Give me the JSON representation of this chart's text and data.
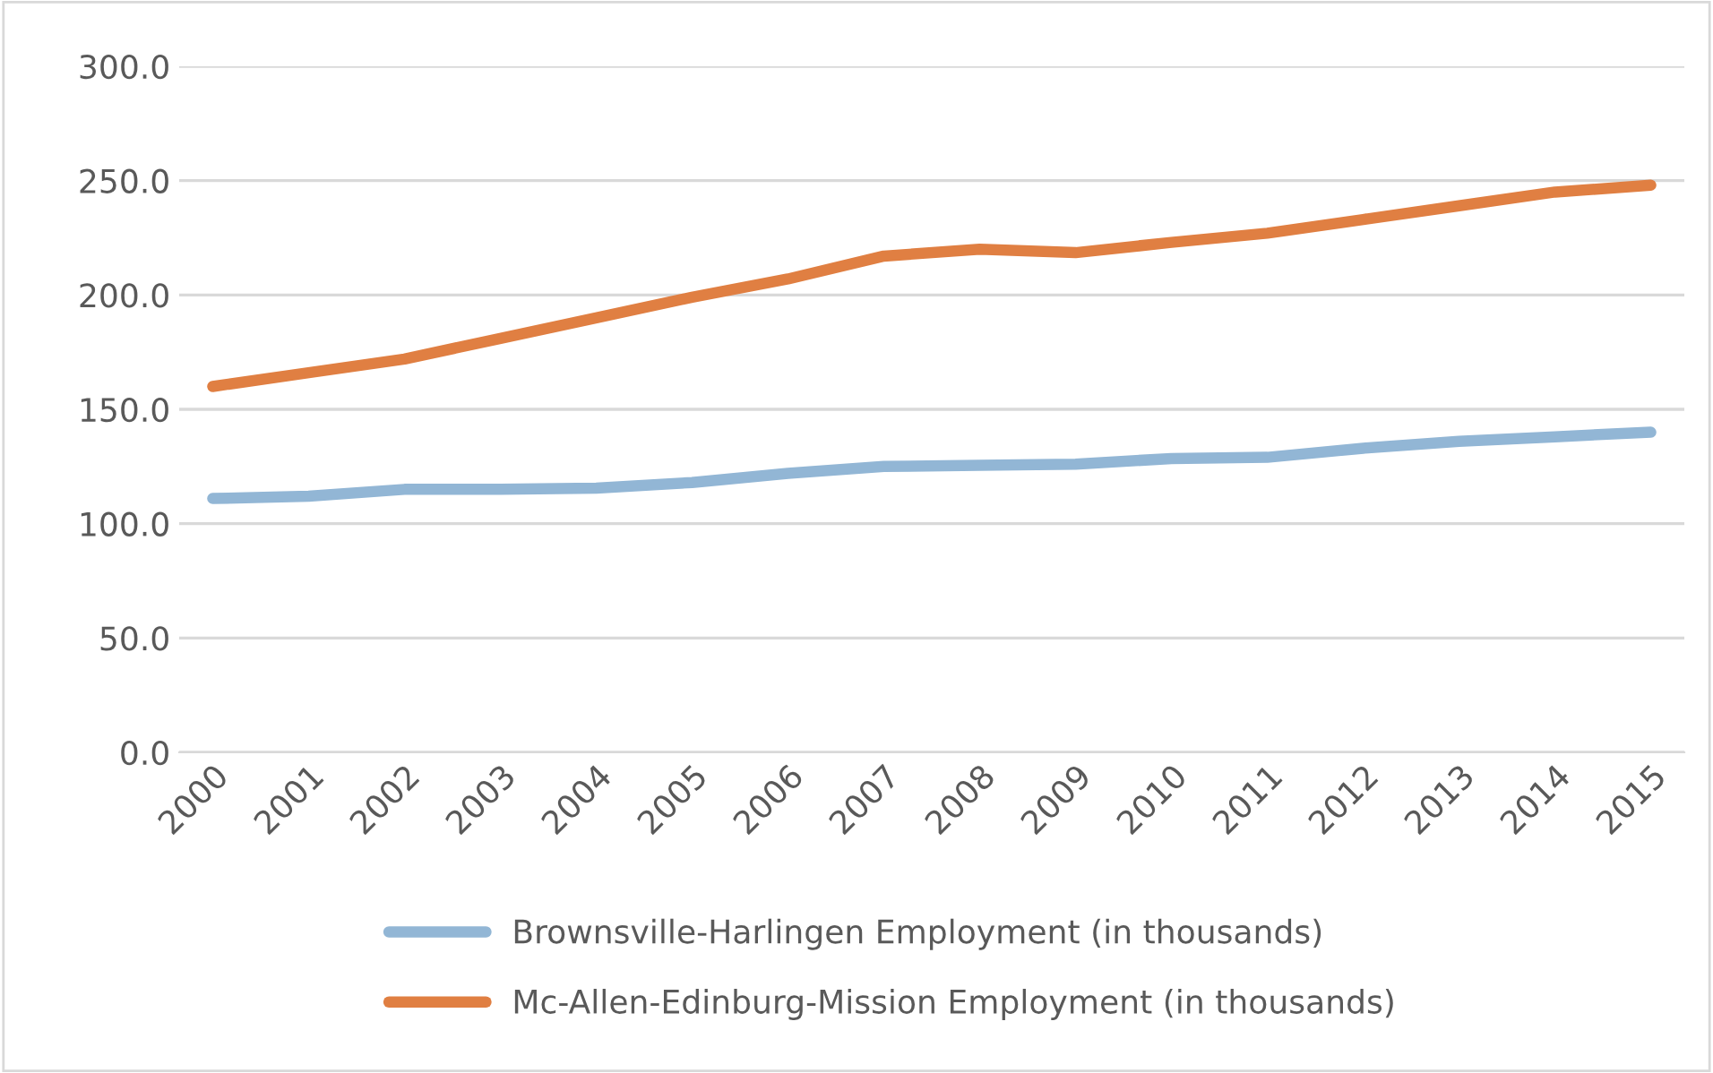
{
  "chart_data": {
    "type": "line",
    "categories": [
      "2000",
      "2001",
      "2002",
      "2003",
      "2004",
      "2005",
      "2006",
      "2007",
      "2008",
      "2009",
      "2010",
      "2011",
      "2012",
      "2013",
      "2014",
      "2015"
    ],
    "series": [
      {
        "name": "Brownsville-Harlingen Employment (in thousands)",
        "color": "#92b6d5",
        "values": [
          111,
          112,
          115,
          115,
          115.5,
          118,
          122,
          125,
          125.5,
          126,
          128.5,
          129,
          133,
          136,
          138,
          140
        ]
      },
      {
        "name": "Mc-Allen-Edinburg-Mission Employment (in thousands)",
        "color": "#e07f42",
        "values": [
          160,
          166,
          172,
          181,
          190,
          199,
          207,
          217,
          220,
          218.5,
          223,
          227,
          233,
          239,
          245,
          248
        ]
      }
    ],
    "ylim": [
      0,
      300
    ],
    "yticks": [
      {
        "value": 0,
        "label": "0.0"
      },
      {
        "value": 50,
        "label": "50.0"
      },
      {
        "value": 100,
        "label": "100.0"
      },
      {
        "value": 150,
        "label": "150.0"
      },
      {
        "value": 200,
        "label": "200.0"
      },
      {
        "value": 250,
        "label": "250.0"
      },
      {
        "value": 300,
        "label": "300.0"
      }
    ],
    "grid": "y",
    "legend": "bottom",
    "marker": "none",
    "line_style": "solid"
  }
}
